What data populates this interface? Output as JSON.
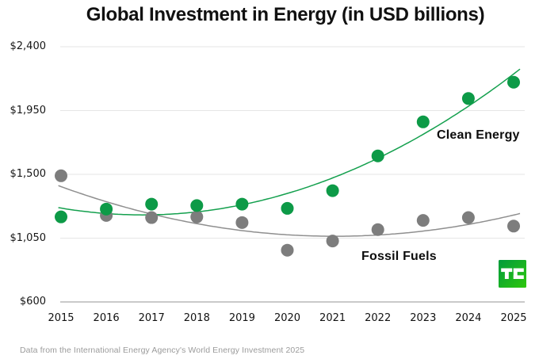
{
  "chart_data": {
    "type": "scatter",
    "title": "Global Investment in Energy (in USD billions)",
    "units": "USD billions",
    "categories": [
      "2015",
      "2016",
      "2017",
      "2018",
      "2019",
      "2020",
      "2021",
      "2022",
      "2023",
      "2024",
      "2025"
    ],
    "series": [
      {
        "name": "Fossil Fuels",
        "dot_color": "#7d7d7d",
        "line_color": "#8f8f8f",
        "values": [
          1490,
          1210,
          1195,
          1200,
          1160,
          965,
          1030,
          1110,
          1175,
          1195,
          1135
        ]
      },
      {
        "name": "Clean Energy",
        "dot_color": "#0d9a47",
        "line_color": "#14a04e",
        "values": [
          1200,
          1255,
          1290,
          1280,
          1290,
          1260,
          1385,
          1630,
          1870,
          2035,
          2150
        ]
      }
    ],
    "ylim": [
      600,
      2400
    ],
    "yticks": [
      600,
      1050,
      1500,
      1950,
      2400
    ],
    "ytick_labels": [
      "$600",
      "$1,050",
      "$1,500",
      "$1,950",
      "$2,400"
    ],
    "trendline": "quadratic",
    "grid": "horizontal",
    "grid_color": "#e6e6e6",
    "axis_color": "#ababab",
    "legend_position": "inline-labels"
  },
  "source_note": "Data from the International Energy Agency's World Energy Investment 2025",
  "brand": {
    "name": "TechCrunch",
    "logo_text": "TC",
    "logo_green_start": "#009b3c",
    "logo_green_end": "#2ec70c"
  }
}
